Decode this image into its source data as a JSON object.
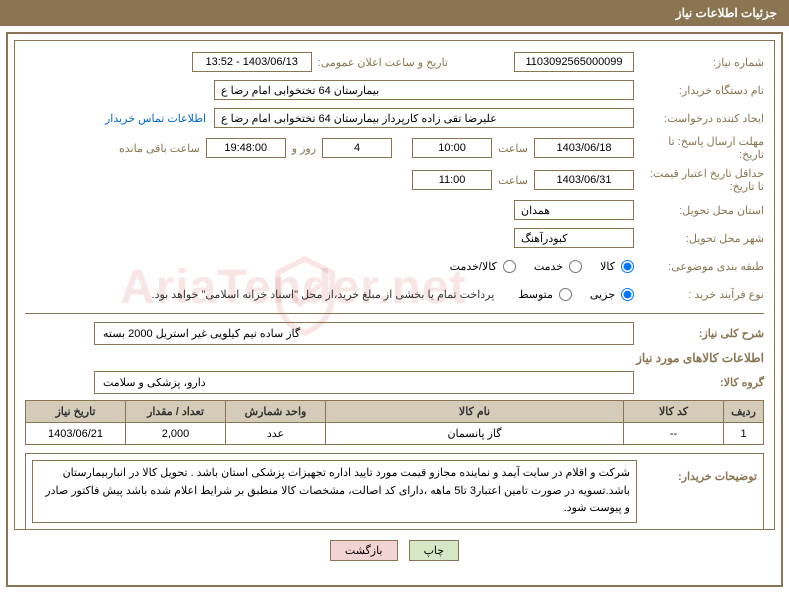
{
  "header": {
    "title": "جزئیات اطلاعات نیاز"
  },
  "form": {
    "need_no_label": "شماره نیاز:",
    "need_no": "1103092565000099",
    "announce_label": "تاریخ و ساعت اعلان عمومی:",
    "announce_value": "1403/06/13 - 13:52",
    "buyer_org_label": "نام دستگاه خریدار:",
    "buyer_org": "بیمارستان  64 تختخوابی امام رضا   ع",
    "requester_label": "ایجاد کننده درخواست:",
    "requester": "علیرضا تقی زاده کارپرداز بیمارستان  64 تختخوابی امام رضا   ع",
    "contact_link": "اطلاعات تماس خریدار",
    "deadline_label": "مهلت ارسال پاسخ: تا تاریخ:",
    "deadline_date": "1403/06/18",
    "time_label": "ساعت",
    "deadline_time": "10:00",
    "days_count": "4",
    "day_and": "روز و",
    "remaining_time": "19:48:00",
    "remaining_label": "ساعت باقی مانده",
    "validity_label": "حداقل تاریخ اعتبار قیمت: تا تاریخ:",
    "validity_date": "1403/06/31",
    "validity_time": "11:00",
    "province_label": "استان محل تحویل:",
    "province": "همدان",
    "city_label": "شهر محل تحویل:",
    "city": "کبودرآهنگ",
    "category_label": "طبقه بندی موضوعی:",
    "cat_goods": "کالا",
    "cat_service": "خدمت",
    "cat_both": "کالا/خدمت",
    "process_label": "نوع فرآیند خرید :",
    "proc_small": "جزیی",
    "proc_medium": "متوسط",
    "payment_note": "پرداخت تمام یا بخشی از مبلغ خرید،از محل \"اسناد خزانه اسلامی\" خواهد بود."
  },
  "summary": {
    "title_label": "شرح کلی نیاز:",
    "title_text": "گاز ساده نیم کیلویی غیر استریل 2000 بسته"
  },
  "goods": {
    "section_title": "اطلاعات کالاهای مورد نیاز",
    "group_label": "گروه کالا:",
    "group_value": "دارو، پزشکی و سلامت",
    "columns": {
      "row": "ردیف",
      "code": "کد کالا",
      "name": "نام کالا",
      "unit": "واحد شمارش",
      "qty": "تعداد / مقدار",
      "date": "تاریخ نیاز"
    },
    "rows": [
      {
        "row": "1",
        "code": "--",
        "name": "گاز پانسمان",
        "unit": "عدد",
        "qty": "2,000",
        "date": "1403/06/21"
      }
    ]
  },
  "buyer_note": {
    "label": "توضیحات خریدار:",
    "text": "شرکت و اقلام در سایت آیمد و نماینده مجازو قیمت مورد تایید اداره تجهیزات پزشکی استان باشد . تحویل کالا در انباربیمارستان باشد.تسویه در صورت تامین اعتبار3 تا5 ماهه ،دارای کد اصالت، مشخصات کالا منطبق بر شرایط اعلام شده باشد پیش فاکتور صادر و پیوست شود."
  },
  "buttons": {
    "print": "چاپ",
    "back": "بازگشت"
  },
  "watermark": "AriaTender.net"
}
